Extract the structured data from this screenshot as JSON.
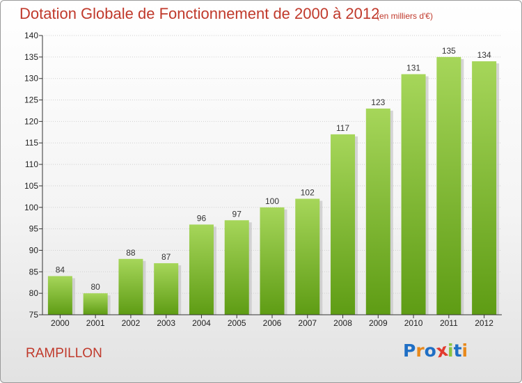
{
  "header": {
    "title": "Dotation Globale de Fonctionnement de 2000 à 2012",
    "subtitle": "(en milliers d'€)"
  },
  "footer": {
    "commune": "RAMPILLON",
    "brand": {
      "letters": [
        "P",
        "r",
        "o",
        "x",
        "i",
        "t",
        "i"
      ],
      "colors": [
        "#1f6fc5",
        "#e8891c",
        "#1f6fc5",
        "#e23b2e",
        "#8bc43f",
        "#1f6fc5",
        "#e8891c"
      ]
    }
  },
  "colors": {
    "bar_top": "#a6d65a",
    "bar_bottom": "#5e9c14",
    "shadow": "#c4c4c4",
    "grid": "#d0d0d0",
    "axis": "#333333",
    "accent": "#c0392b"
  },
  "chart_data": {
    "type": "bar",
    "title": "Dotation Globale de Fonctionnement de 2000 à 2012",
    "subtitle": "(en milliers d'€)",
    "xlabel": "",
    "ylabel": "",
    "categories": [
      "2000",
      "2001",
      "2002",
      "2003",
      "2004",
      "2005",
      "2006",
      "2007",
      "2008",
      "2009",
      "2010",
      "2011",
      "2012"
    ],
    "values": [
      84,
      80,
      88,
      87,
      96,
      97,
      100,
      102,
      117,
      123,
      131,
      135,
      134
    ],
    "ylim": [
      75,
      140
    ],
    "yticks": [
      75,
      80,
      85,
      90,
      95,
      100,
      105,
      110,
      115,
      120,
      125,
      130,
      135,
      140
    ],
    "grid": true,
    "legend": "none"
  }
}
